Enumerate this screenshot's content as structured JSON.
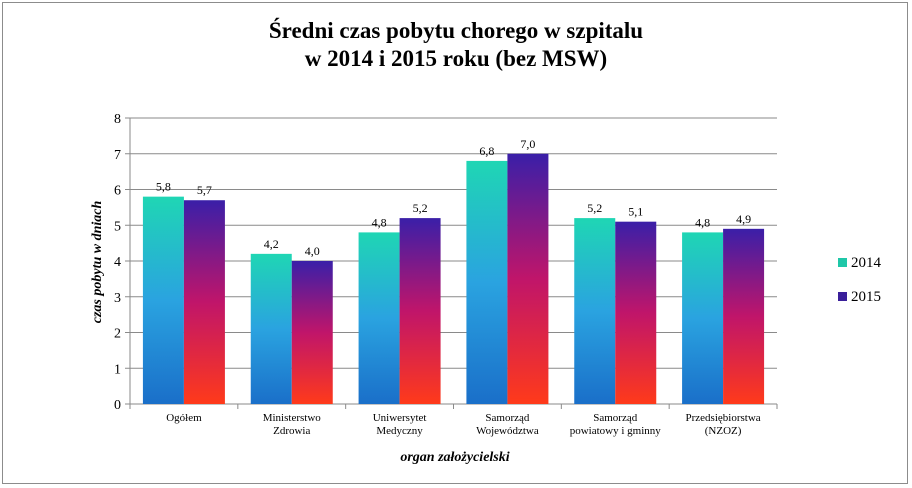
{
  "chart_data": {
    "type": "bar",
    "title_line1": "Średni  czas pobytu chorego w szpitalu",
    "title_line2": "w 2014 i  2015  roku (bez MSW)",
    "xlabel": "organ założycielski",
    "ylabel": "czas pobytu w dniach",
    "ylim": [
      0,
      8
    ],
    "yticks": [
      "0",
      "1",
      "2",
      "3",
      "4",
      "5",
      "6",
      "7",
      "8"
    ],
    "grid": true,
    "legend_position": "right",
    "categories": [
      [
        "Ogółem"
      ],
      [
        "Ministerstwo",
        "Zdrowia"
      ],
      [
        "Uniwersytet",
        "Medyczny"
      ],
      [
        "Samorząd",
        "Województwa"
      ],
      [
        "Samorząd",
        "powiatowy i gminny"
      ],
      [
        "Przedsiębiorstwa",
        "(NZOZ)"
      ]
    ],
    "series": [
      {
        "name": "2014",
        "values": [
          5.8,
          4.2,
          4.8,
          6.8,
          5.2,
          4.8
        ],
        "labels": [
          "5,8",
          "4,2",
          "4,8",
          "6,8",
          "5,2",
          "4,8"
        ],
        "gradient": [
          "#1fd6b4",
          "#2aa3e0",
          "#1a6fc9"
        ],
        "legend_color": "#1fc7a8"
      },
      {
        "name": "2015",
        "values": [
          5.7,
          4.0,
          5.2,
          7.0,
          5.1,
          4.9
        ],
        "labels": [
          "5,7",
          "4,0",
          "5,2",
          "7,0",
          "5,1",
          "4,9"
        ],
        "gradient": [
          "#3a1fa8",
          "#c0156a",
          "#ff3a1a"
        ],
        "legend_color": "#3a1f9a"
      }
    ]
  }
}
